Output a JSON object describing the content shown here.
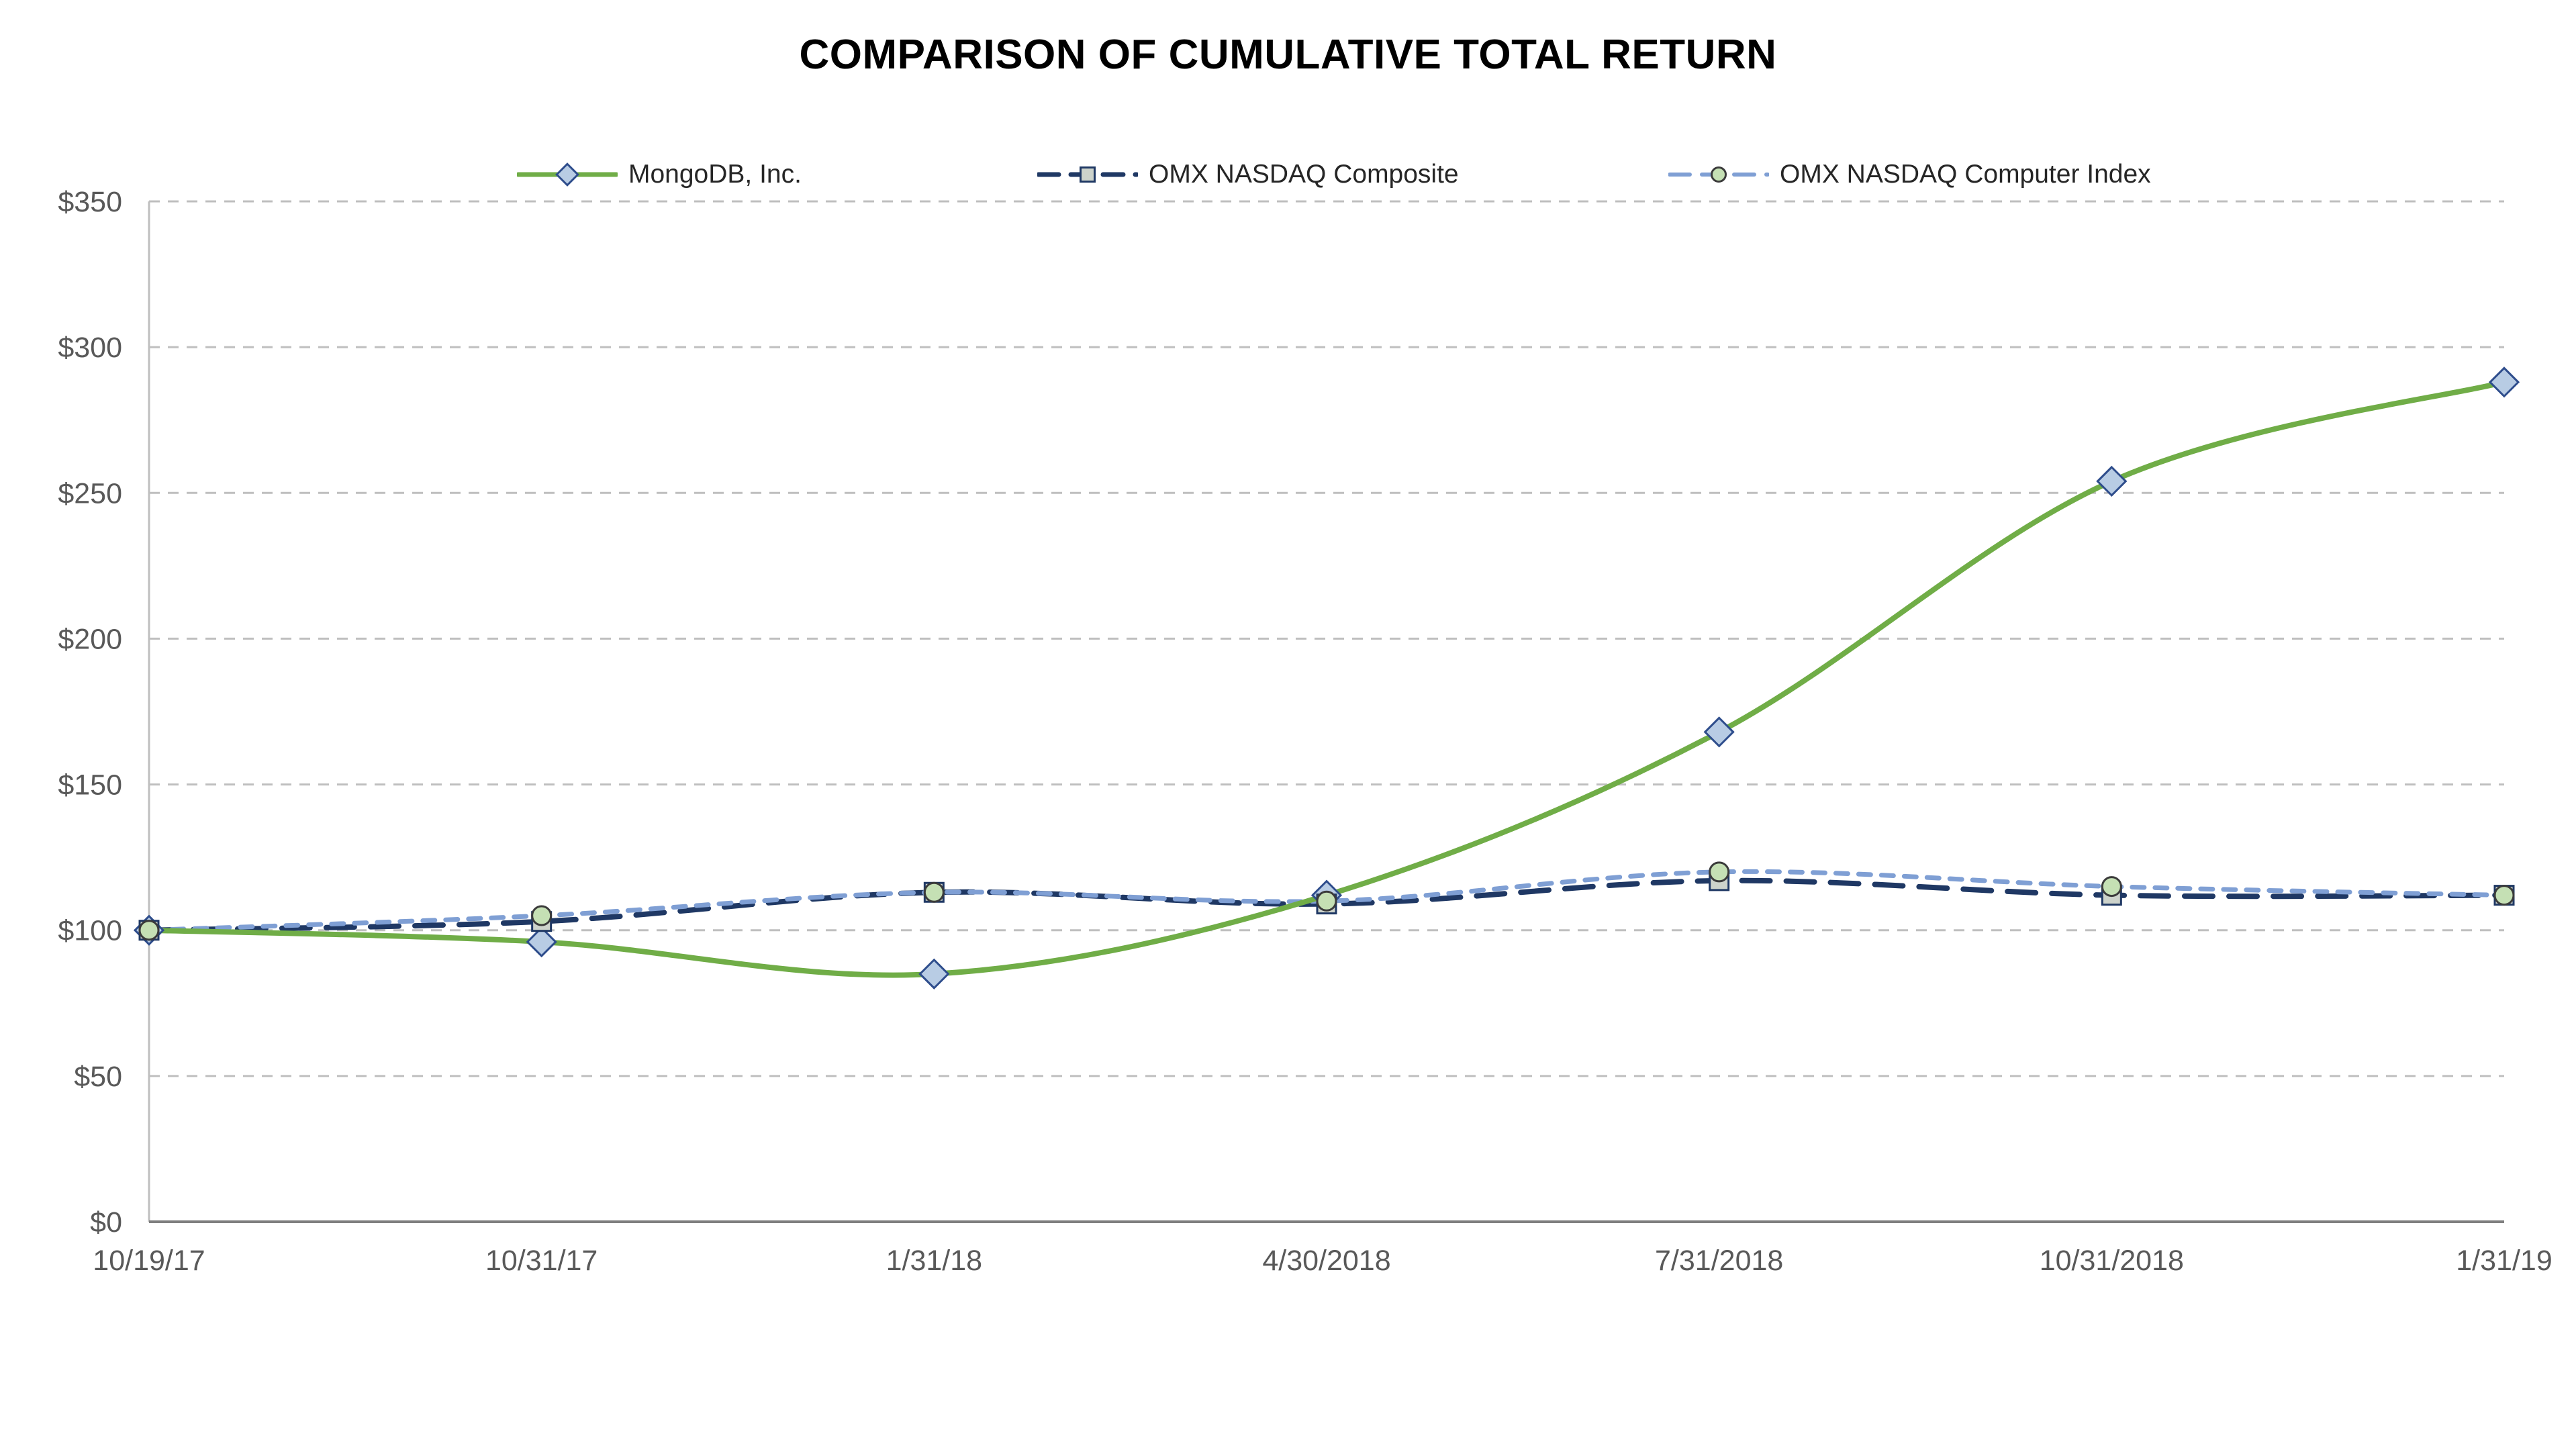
{
  "page": {
    "background": "#FFFFFF"
  },
  "chart_data": {
    "type": "line",
    "title": "COMPARISON OF CUMULATIVE TOTAL RETURN",
    "categories": [
      "10/19/17",
      "10/31/17",
      "1/31/18",
      "4/30/2018",
      "7/31/2018",
      "10/31/2018",
      "1/31/19"
    ],
    "series": [
      {
        "name": "MongoDB, Inc.",
        "values": [
          100,
          96,
          85,
          112,
          168,
          254,
          288
        ],
        "color": "#70AD47",
        "line_style": "solid",
        "line_width": 8,
        "marker": "diamond",
        "marker_fill": "#B8CCE4",
        "marker_stroke": "#2E4D8C"
      },
      {
        "name": "OMX NASDAQ Composite",
        "values": [
          100,
          103,
          113,
          109,
          117,
          112,
          112
        ],
        "color": "#1F3864",
        "line_style": "long-dash",
        "line_width": 8,
        "marker": "square",
        "marker_fill": "#CDD3CB",
        "marker_stroke": "#1F3864"
      },
      {
        "name": "OMX NASDAQ Computer Index",
        "values": [
          100,
          105,
          113,
          110,
          120,
          115,
          112
        ],
        "color": "#7F9FD4",
        "line_style": "dash",
        "line_width": 7,
        "marker": "circle",
        "marker_fill": "#C5E0B4",
        "marker_stroke": "#3B3B3B"
      }
    ],
    "xlabel": "",
    "ylabel": "",
    "ylim": [
      0,
      350
    ],
    "yticks": [
      {
        "label": "$0",
        "value": 0
      },
      {
        "label": "$50",
        "value": 50
      },
      {
        "label": "$100",
        "value": 100
      },
      {
        "label": "$150",
        "value": 150
      },
      {
        "label": "$200",
        "value": 200
      },
      {
        "label": "$250",
        "value": 250
      },
      {
        "label": "$300",
        "value": 300
      },
      {
        "label": "$350",
        "value": 350
      }
    ],
    "grid": "horizontal-dashed",
    "legend_position": "top",
    "axis_text_color": "#595959",
    "gridline_color": "#BFBFBF",
    "axis_line_color": "#7F7F7F"
  }
}
